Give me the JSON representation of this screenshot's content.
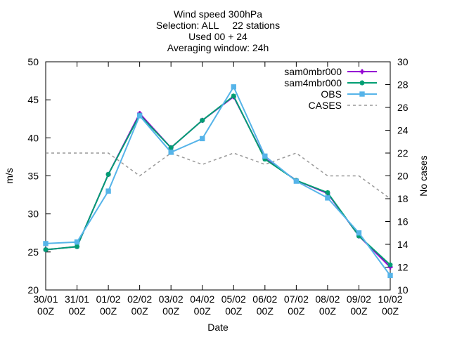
{
  "chart_data": {
    "type": "line",
    "title_lines": [
      "Wind speed 300hPa",
      "Selection: ALL     22 stations",
      "Used 00 + 24",
      "Averaging window: 24h"
    ],
    "xlabel": "Date",
    "ylabel": "m/s",
    "y2label": "No cases",
    "categories": [
      [
        "30/01",
        "00Z"
      ],
      [
        "31/01",
        "00Z"
      ],
      [
        "01/02",
        "00Z"
      ],
      [
        "02/02",
        "00Z"
      ],
      [
        "03/02",
        "00Z"
      ],
      [
        "04/02",
        "00Z"
      ],
      [
        "05/02",
        "00Z"
      ],
      [
        "06/02",
        "00Z"
      ],
      [
        "07/02",
        "00Z"
      ],
      [
        "08/02",
        "00Z"
      ],
      [
        "09/02",
        "00Z"
      ],
      [
        "10/02",
        "00Z"
      ]
    ],
    "ylim": [
      20,
      50
    ],
    "yticks": [
      20,
      25,
      30,
      35,
      40,
      45,
      50
    ],
    "y2lim": [
      10,
      30
    ],
    "y2ticks": [
      10,
      12,
      14,
      16,
      18,
      20,
      22,
      24,
      26,
      28,
      30
    ],
    "grid": false,
    "legend_position": "top-right",
    "series": [
      {
        "name": "sam0mbr000",
        "axis": "y",
        "color": "#9400d3",
        "dash": false,
        "marker": "plus",
        "values": [
          25.3,
          25.7,
          35.2,
          43.2,
          38.7,
          42.3,
          45.4,
          37.3,
          34.4,
          32.7,
          27.1,
          23.0
        ]
      },
      {
        "name": "sam4mbr000",
        "axis": "y",
        "color": "#009e73",
        "dash": false,
        "marker": "star",
        "values": [
          25.3,
          25.7,
          35.2,
          43.0,
          38.7,
          42.3,
          45.5,
          37.2,
          34.4,
          32.8,
          27.1,
          23.3
        ]
      },
      {
        "name": "OBS",
        "axis": "y",
        "color": "#56b4e9",
        "dash": false,
        "marker": "square",
        "values": [
          26.1,
          26.3,
          33.0,
          42.9,
          38.1,
          39.9,
          46.7,
          37.6,
          34.3,
          32.1,
          27.5,
          21.9
        ]
      },
      {
        "name": "CASES",
        "axis": "y2",
        "color": "#999999",
        "dash": true,
        "marker": "none",
        "values": [
          22,
          22,
          22,
          20,
          22,
          21,
          22,
          21,
          22,
          20,
          20,
          18
        ]
      }
    ]
  }
}
